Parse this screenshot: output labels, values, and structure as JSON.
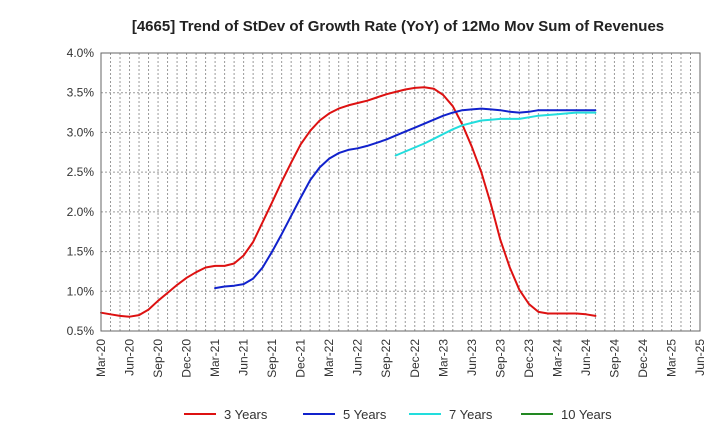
{
  "chart_data": {
    "type": "line",
    "title": "[4665]  Trend of StDev of Growth Rate (YoY) of 12Mo Mov Sum of Revenues",
    "xlabel": "",
    "ylabel": "",
    "ylim": [
      0.5,
      4.0
    ],
    "y_ticks": [
      0.5,
      1.0,
      1.5,
      2.0,
      2.5,
      3.0,
      3.5,
      4.0
    ],
    "y_tick_labels": [
      "0.5%",
      "1.0%",
      "1.5%",
      "2.0%",
      "2.5%",
      "3.0%",
      "3.5%",
      "4.0%"
    ],
    "x_tick_labels": [
      "Mar-20",
      "Jun-20",
      "Sep-20",
      "Dec-20",
      "Mar-21",
      "Jun-21",
      "Sep-21",
      "Dec-21",
      "Mar-22",
      "Jun-22",
      "Sep-22",
      "Dec-22",
      "Mar-23",
      "Jun-23",
      "Sep-23",
      "Dec-23",
      "Mar-24",
      "Jun-24",
      "Sep-24",
      "Dec-24",
      "Mar-25",
      "Jun-25"
    ],
    "grid": true,
    "legend_position": "bottom",
    "series": [
      {
        "name": "3 Years",
        "color": "#dd1111",
        "start_index": 0,
        "values": [
          0.73,
          0.71,
          0.69,
          0.68,
          0.7,
          0.77,
          0.88,
          0.98,
          1.08,
          1.17,
          1.24,
          1.3,
          1.32,
          1.32,
          1.35,
          1.45,
          1.62,
          1.87,
          2.12,
          2.38,
          2.62,
          2.85,
          3.02,
          3.15,
          3.24,
          3.3,
          3.34,
          3.37,
          3.4,
          3.44,
          3.48,
          3.51,
          3.54,
          3.56,
          3.57,
          3.55,
          3.47,
          3.33,
          3.1,
          2.82,
          2.5,
          2.1,
          1.65,
          1.3,
          1.02,
          0.84,
          0.74,
          0.72,
          0.72,
          0.72,
          0.72,
          0.71,
          0.69
        ]
      },
      {
        "name": "5 Years",
        "color": "#1122cc",
        "start_index": 12,
        "values": [
          1.04,
          1.06,
          1.07,
          1.09,
          1.16,
          1.3,
          1.5,
          1.72,
          1.95,
          2.18,
          2.4,
          2.56,
          2.67,
          2.74,
          2.78,
          2.8,
          2.83,
          2.87,
          2.91,
          2.96,
          3.01,
          3.06,
          3.11,
          3.16,
          3.21,
          3.25,
          3.28,
          3.29,
          3.3,
          3.29,
          3.28,
          3.26,
          3.25,
          3.26,
          3.28,
          3.28,
          3.28,
          3.28,
          3.28,
          3.28,
          3.28
        ]
      },
      {
        "name": "7 Years",
        "color": "#22dddd",
        "start_index": 31,
        "values": [
          2.71,
          2.76,
          2.81,
          2.86,
          2.92,
          2.98,
          3.04,
          3.09,
          3.12,
          3.15,
          3.16,
          3.17,
          3.17,
          3.17,
          3.19,
          3.21,
          3.22,
          3.23,
          3.24,
          3.25,
          3.25,
          3.25
        ]
      },
      {
        "name": "10 Years",
        "color": "#228822",
        "start_index": 0,
        "values": []
      }
    ]
  }
}
